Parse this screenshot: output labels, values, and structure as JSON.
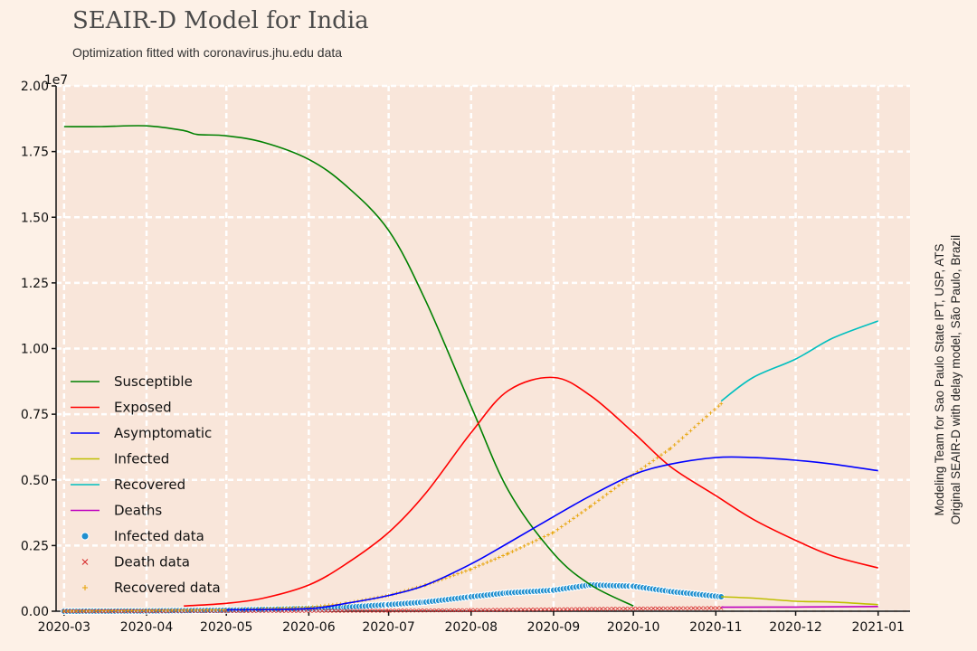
{
  "title": "SEAIR-D Model for India",
  "subtitle": "Optimization fitted with coronavirus.jhu.edu data",
  "side_note": [
    "Modeling Team for Sao Paulo State IPT, USP, ATS",
    "Original SEAIR-D with delay model, São Paulo, Brazil"
  ],
  "chart_data": {
    "type": "line",
    "title": "SEAIR-D Model for India",
    "xlabel": "",
    "ylabel": "",
    "y_offset_label": "1e7",
    "ylim": [
      0,
      2.0
    ],
    "xlim": [
      "2020-02-27",
      "2021-01-13"
    ],
    "grid": true,
    "legend_placement": "lower-left",
    "x_ticks": [
      "2020-03-01",
      "2020-04-01",
      "2020-05-01",
      "2020-06-01",
      "2020-07-01",
      "2020-08-01",
      "2020-09-01",
      "2020-10-01",
      "2020-11-01",
      "2020-12-01",
      "2021-01-01"
    ],
    "x_tick_labels": [
      "2020-03",
      "2020-04",
      "2020-05",
      "2020-06",
      "2020-07",
      "2020-08",
      "2020-09",
      "2020-10",
      "2020-11",
      "2020-12",
      "2021-01"
    ],
    "y_ticks": [
      0,
      0.25,
      0.5,
      0.75,
      1.0,
      1.25,
      1.5,
      1.75,
      2.0
    ],
    "y_tick_labels": [
      "0.00",
      "0.25",
      "0.50",
      "0.75",
      "1.00",
      "1.25",
      "1.50",
      "1.75",
      "2.00"
    ],
    "series": [
      {
        "name": "Susceptible",
        "color": "#008000",
        "x": [
          "2020-03-01",
          "2020-03-15",
          "2020-04-01",
          "2020-04-15",
          "2020-04-20",
          "2020-05-01",
          "2020-05-15",
          "2020-06-01",
          "2020-06-15",
          "2020-07-01",
          "2020-07-15",
          "2020-08-01",
          "2020-08-15",
          "2020-09-01",
          "2020-09-15",
          "2020-10-01"
        ],
        "y": [
          1.845,
          1.845,
          1.848,
          1.83,
          1.815,
          1.81,
          1.785,
          1.72,
          1.62,
          1.45,
          1.18,
          0.78,
          0.46,
          0.22,
          0.1,
          0.02
        ]
      },
      {
        "name": "Exposed",
        "color": "#ff0000",
        "x": [
          "2020-04-15",
          "2020-05-01",
          "2020-05-15",
          "2020-06-01",
          "2020-06-15",
          "2020-07-01",
          "2020-07-15",
          "2020-08-01",
          "2020-08-15",
          "2020-09-01",
          "2020-09-15",
          "2020-10-01",
          "2020-10-15",
          "2020-11-01",
          "2020-11-15",
          "2020-12-01",
          "2020-12-15",
          "2021-01-01"
        ],
        "y": [
          0.02,
          0.03,
          0.05,
          0.1,
          0.18,
          0.3,
          0.45,
          0.68,
          0.84,
          0.89,
          0.82,
          0.68,
          0.55,
          0.44,
          0.35,
          0.27,
          0.21,
          0.165
        ]
      },
      {
        "name": "Asymptomatic",
        "color": "#0000ff",
        "x": [
          "2020-05-01",
          "2020-06-01",
          "2020-06-15",
          "2020-07-01",
          "2020-07-15",
          "2020-08-01",
          "2020-08-15",
          "2020-09-01",
          "2020-09-15",
          "2020-10-01",
          "2020-10-15",
          "2020-11-01",
          "2020-11-15",
          "2020-12-01",
          "2020-12-15",
          "2021-01-01"
        ],
        "y": [
          0.005,
          0.01,
          0.03,
          0.06,
          0.1,
          0.18,
          0.26,
          0.36,
          0.44,
          0.52,
          0.56,
          0.585,
          0.585,
          0.575,
          0.56,
          0.535
        ]
      },
      {
        "name": "Infected",
        "color": "#bfbf00",
        "x": [
          "2020-11-03",
          "2020-11-15",
          "2020-12-01",
          "2020-12-15",
          "2021-01-01"
        ],
        "y": [
          0.055,
          0.05,
          0.038,
          0.035,
          0.025
        ]
      },
      {
        "name": "Recovered",
        "color": "#00bfbf",
        "x": [
          "2020-11-03",
          "2020-11-15",
          "2020-12-01",
          "2020-12-15",
          "2021-01-01"
        ],
        "y": [
          0.8,
          0.89,
          0.96,
          1.04,
          1.105
        ]
      },
      {
        "name": "Deaths",
        "color": "#bf00bf",
        "x": [
          "2020-11-03",
          "2020-12-01",
          "2021-01-01"
        ],
        "y": [
          0.015,
          0.016,
          0.018
        ]
      }
    ],
    "scatter_series": [
      {
        "name": "Infected data",
        "color": "#1f8fcf",
        "marker": "circle",
        "x": [
          "2020-03-01",
          "2020-04-01",
          "2020-05-01",
          "2020-06-01",
          "2020-06-15",
          "2020-07-01",
          "2020-07-15",
          "2020-08-01",
          "2020-08-15",
          "2020-09-01",
          "2020-09-15",
          "2020-10-01",
          "2020-10-15",
          "2020-11-03"
        ],
        "y": [
          0.0,
          0.001,
          0.004,
          0.01,
          0.015,
          0.025,
          0.035,
          0.055,
          0.07,
          0.08,
          0.1,
          0.095,
          0.075,
          0.055
        ]
      },
      {
        "name": "Death data",
        "color": "#d62728",
        "marker": "x",
        "x": [
          "2020-03-01",
          "2020-05-01",
          "2020-07-01",
          "2020-08-01",
          "2020-09-01",
          "2020-10-01",
          "2020-11-03"
        ],
        "y": [
          0.0,
          0.0005,
          0.002,
          0.004,
          0.007,
          0.01,
          0.012
        ]
      },
      {
        "name": "Recovered data",
        "color": "#e6a100",
        "marker": "plus",
        "x": [
          "2020-03-01",
          "2020-05-01",
          "2020-06-01",
          "2020-06-15",
          "2020-07-01",
          "2020-07-15",
          "2020-08-01",
          "2020-08-15",
          "2020-09-01",
          "2020-09-15",
          "2020-10-01",
          "2020-10-15",
          "2020-11-03"
        ],
        "y": [
          0.0,
          0.005,
          0.015,
          0.03,
          0.06,
          0.1,
          0.16,
          0.22,
          0.3,
          0.4,
          0.52,
          0.62,
          0.79
        ]
      }
    ]
  }
}
